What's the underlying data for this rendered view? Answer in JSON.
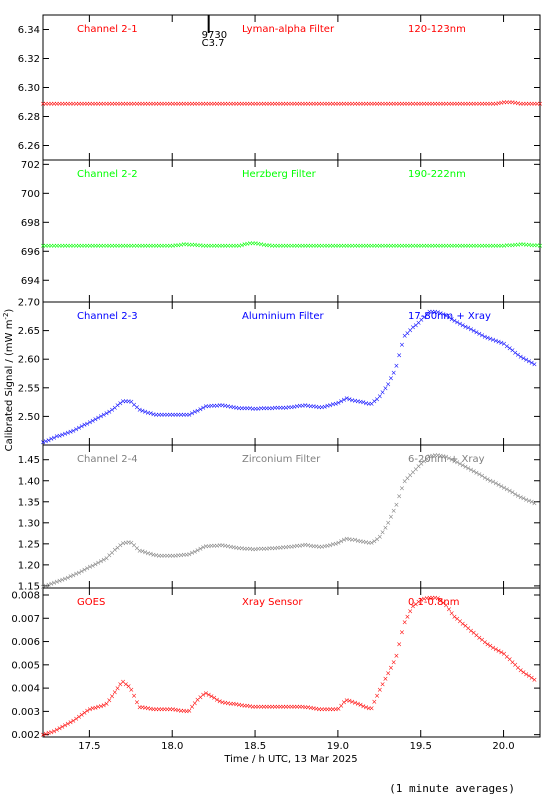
{
  "figure": {
    "ylabel": "Calibrated Signal / (mW m",
    "ylabel_sup": "-2",
    "ylabel_end": ")",
    "xlabel": "Time / h UTC, 13 Mar 2025",
    "footnote": "(1 minute averages)",
    "marker_text_1": "9730",
    "marker_text_2": "C3.7",
    "marker_time": 18.22
  },
  "chart_data": [
    {
      "type": "scatter",
      "panel_labels": [
        "Channel 2-1",
        "Lyman-alpha Filter",
        "120-123nm"
      ],
      "color": "#ff0000",
      "ylim": [
        6.25,
        6.35
      ],
      "ytick_labels": [
        "6.26",
        "6.28",
        "6.30",
        "6.32",
        "6.34"
      ],
      "ytick_values": [
        6.26,
        6.28,
        6.3,
        6.32,
        6.34
      ],
      "xlim": [
        17.22,
        20.22
      ],
      "x": [
        17.22,
        17.4,
        17.6,
        17.8,
        18.0,
        18.2,
        18.4,
        18.6,
        18.8,
        19.0,
        19.2,
        19.4,
        19.6,
        19.8,
        19.95,
        20.0,
        20.05,
        20.1,
        20.22
      ],
      "y": [
        6.289,
        6.289,
        6.289,
        6.289,
        6.289,
        6.289,
        6.289,
        6.289,
        6.289,
        6.289,
        6.289,
        6.289,
        6.289,
        6.289,
        6.289,
        6.29,
        6.29,
        6.289,
        6.289
      ]
    },
    {
      "type": "scatter",
      "panel_labels": [
        "Channel 2-2",
        "Herzberg Filter",
        "190-222nm"
      ],
      "color": "#00ff00",
      "ylim": [
        692.5,
        702.3
      ],
      "ytick_labels": [
        "694",
        "696",
        "698",
        "700",
        "702"
      ],
      "ytick_values": [
        694,
        696,
        698,
        700,
        702
      ],
      "xlim": [
        17.22,
        20.22
      ],
      "x": [
        17.22,
        17.4,
        17.6,
        17.8,
        18.0,
        18.08,
        18.2,
        18.4,
        18.48,
        18.6,
        18.8,
        19.0,
        19.2,
        19.4,
        19.6,
        19.8,
        20.0,
        20.12,
        20.22
      ],
      "y": [
        696.4,
        696.4,
        696.4,
        696.4,
        696.4,
        696.5,
        696.4,
        696.4,
        696.6,
        696.4,
        696.4,
        696.4,
        696.4,
        696.4,
        696.4,
        696.4,
        696.4,
        696.5,
        696.4
      ]
    },
    {
      "type": "scatter",
      "panel_labels": [
        "Channel 2-3",
        "Aluminium Filter",
        "17-80nm + Xray"
      ],
      "color": "#0000ff",
      "ylim": [
        2.45,
        2.7
      ],
      "ytick_labels": [
        "2.50",
        "2.55",
        "2.60",
        "2.65",
        "2.70"
      ],
      "ytick_values": [
        2.5,
        2.55,
        2.6,
        2.65,
        2.7
      ],
      "xlim": [
        17.22,
        20.22
      ],
      "x": [
        17.22,
        17.3,
        17.4,
        17.5,
        17.6,
        17.65,
        17.7,
        17.75,
        17.8,
        17.9,
        18.0,
        18.1,
        18.15,
        18.2,
        18.3,
        18.4,
        18.5,
        18.6,
        18.7,
        18.8,
        18.9,
        19.0,
        19.05,
        19.1,
        19.2,
        19.25,
        19.3,
        19.35,
        19.4,
        19.45,
        19.5,
        19.55,
        19.6,
        19.65,
        19.7,
        19.8,
        19.9,
        20.0,
        20.1,
        20.2
      ],
      "y": [
        2.455,
        2.465,
        2.475,
        2.49,
        2.505,
        2.515,
        2.527,
        2.527,
        2.512,
        2.503,
        2.503,
        2.503,
        2.51,
        2.518,
        2.52,
        2.515,
        2.514,
        2.515,
        2.516,
        2.52,
        2.516,
        2.524,
        2.532,
        2.528,
        2.522,
        2.534,
        2.555,
        2.585,
        2.64,
        2.655,
        2.668,
        2.683,
        2.683,
        2.677,
        2.668,
        2.653,
        2.638,
        2.628,
        2.605,
        2.59
      ]
    },
    {
      "type": "scatter",
      "panel_labels": [
        "Channel 2-4",
        "Zirconium Filter",
        "6-20nm + Xray"
      ],
      "color": "#808080",
      "ylim": [
        1.145,
        1.485
      ],
      "ytick_labels": [
        "1.15",
        "1.20",
        "1.25",
        "1.30",
        "1.35",
        "1.40",
        "1.45"
      ],
      "ytick_values": [
        1.15,
        1.2,
        1.25,
        1.3,
        1.35,
        1.4,
        1.45
      ],
      "xlim": [
        17.22,
        20.22
      ],
      "x": [
        17.22,
        17.3,
        17.4,
        17.5,
        17.6,
        17.65,
        17.7,
        17.75,
        17.8,
        17.9,
        18.0,
        18.1,
        18.15,
        18.2,
        18.3,
        18.4,
        18.5,
        18.6,
        18.7,
        18.8,
        18.9,
        19.0,
        19.05,
        19.1,
        19.2,
        19.25,
        19.3,
        19.35,
        19.4,
        19.45,
        19.5,
        19.55,
        19.6,
        19.65,
        19.7,
        19.8,
        19.9,
        20.0,
        20.1,
        20.2
      ],
      "y": [
        1.148,
        1.16,
        1.175,
        1.195,
        1.215,
        1.235,
        1.252,
        1.255,
        1.235,
        1.223,
        1.222,
        1.225,
        1.235,
        1.245,
        1.247,
        1.24,
        1.238,
        1.24,
        1.243,
        1.248,
        1.243,
        1.252,
        1.263,
        1.26,
        1.252,
        1.265,
        1.298,
        1.34,
        1.398,
        1.42,
        1.44,
        1.458,
        1.462,
        1.458,
        1.448,
        1.428,
        1.405,
        1.385,
        1.362,
        1.345
      ]
    },
    {
      "type": "scatter",
      "panel_labels": [
        "GOES",
        "Xray Sensor",
        "0.1-0.8nm"
      ],
      "color": "#ff0000",
      "ylim": [
        0.0019,
        0.0083
      ],
      "ytick_labels": [
        "0.002",
        "0.003",
        "0.004",
        "0.005",
        "0.006",
        "0.007",
        "0.008"
      ],
      "ytick_values": [
        0.002,
        0.003,
        0.004,
        0.005,
        0.006,
        0.007,
        0.008
      ],
      "xlim": [
        17.22,
        20.22
      ],
      "x": [
        17.22,
        17.3,
        17.4,
        17.5,
        17.6,
        17.65,
        17.7,
        17.75,
        17.8,
        17.9,
        18.0,
        18.1,
        18.15,
        18.2,
        18.3,
        18.4,
        18.5,
        18.6,
        18.7,
        18.8,
        18.9,
        19.0,
        19.05,
        19.1,
        19.2,
        19.25,
        19.3,
        19.35,
        19.4,
        19.45,
        19.5,
        19.55,
        19.6,
        19.65,
        19.7,
        19.8,
        19.9,
        20.0,
        20.1,
        20.2
      ],
      "y": [
        0.002,
        0.0022,
        0.0026,
        0.0031,
        0.0033,
        0.0038,
        0.0043,
        0.004,
        0.0032,
        0.0031,
        0.0031,
        0.003,
        0.0035,
        0.0038,
        0.0034,
        0.0033,
        0.0032,
        0.0032,
        0.0032,
        0.0032,
        0.0031,
        0.0031,
        0.0035,
        0.0034,
        0.0031,
        0.0039,
        0.0046,
        0.0053,
        0.0068,
        0.0075,
        0.0078,
        0.0079,
        0.0079,
        0.0076,
        0.0071,
        0.0065,
        0.0059,
        0.0055,
        0.0048,
        0.0043
      ]
    }
  ],
  "xaxis": {
    "xlim": [
      17.22,
      20.22
    ],
    "tick_labels": [
      "17.5",
      "18.0",
      "18.5",
      "19.0",
      "19.5",
      "20.0"
    ],
    "tick_values": [
      17.5,
      18.0,
      18.5,
      19.0,
      19.5,
      20.0
    ]
  }
}
